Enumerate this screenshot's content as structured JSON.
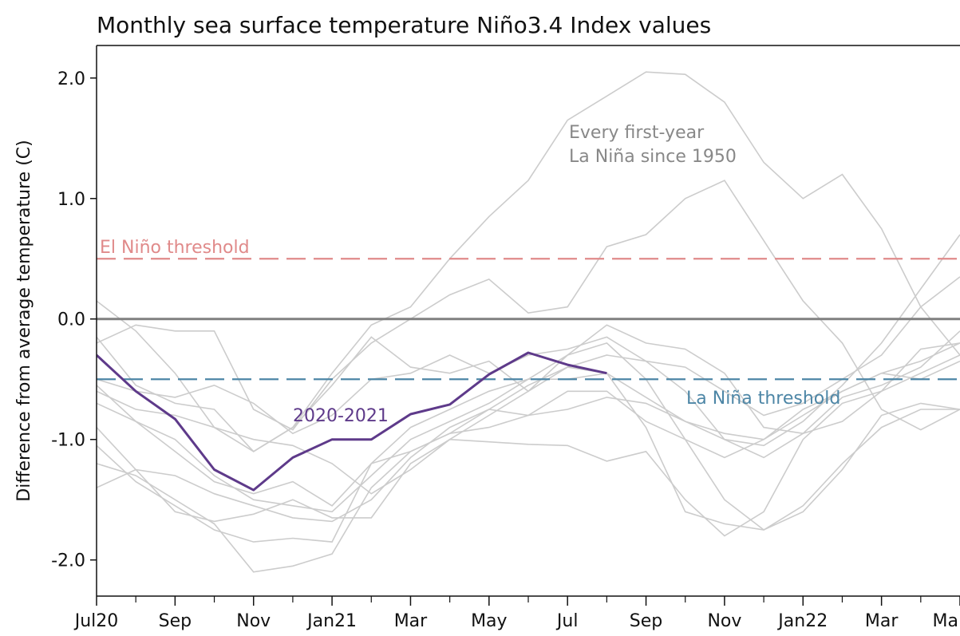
{
  "chart_data": {
    "type": "line",
    "title": "Monthly sea surface temperature Niño3.4 Index values",
    "xlabel": "",
    "ylabel": "Difference from average temperature (C)",
    "ylim": [
      -2.3,
      2.27
    ],
    "xlim": [
      0,
      22
    ],
    "yticks": [
      {
        "value": 2.0,
        "label": "2.0"
      },
      {
        "value": 1.0,
        "label": "1.0"
      },
      {
        "value": 0.0,
        "label": "0.0"
      },
      {
        "value": -1.0,
        "label": "-1.0"
      },
      {
        "value": -2.0,
        "label": "-2.0"
      }
    ],
    "xticks": [
      {
        "value": 0,
        "label": "Jul20"
      },
      {
        "value": 2,
        "label": "Sep"
      },
      {
        "value": 4,
        "label": "Nov"
      },
      {
        "value": 6,
        "label": "Jan21"
      },
      {
        "value": 8,
        "label": "Mar"
      },
      {
        "value": 10,
        "label": "May"
      },
      {
        "value": 12,
        "label": "Jul"
      },
      {
        "value": 14,
        "label": "Sep"
      },
      {
        "value": 16,
        "label": "Nov"
      },
      {
        "value": 18,
        "label": "Jan22"
      },
      {
        "value": 20,
        "label": "Mar"
      },
      {
        "value": 22,
        "label": "Ma"
      }
    ],
    "minor_xticks": [
      1,
      3,
      5,
      7,
      9,
      11,
      13,
      15,
      17,
      19,
      21
    ],
    "reference_lines": [
      {
        "name": "El Niño threshold",
        "y": 0.5,
        "color": "#e08a8a",
        "style": "dashed"
      },
      {
        "name": "zero",
        "y": 0.0,
        "color": "#808080",
        "style": "solid"
      },
      {
        "name": "La Niña threshold",
        "y": -0.5,
        "color": "#4d86a6",
        "style": "dashed"
      }
    ],
    "annotations": [
      {
        "text": "El Niño threshold",
        "color": "#e08a8a"
      },
      {
        "text": "La Niña threshold",
        "color": "#4d86a6"
      },
      {
        "text": "Every first-year",
        "color": "#888888"
      },
      {
        "text": "La Niña since 1950",
        "color": "#888888"
      },
      {
        "text": "2020-2021",
        "color": "#5e3a8a"
      }
    ],
    "highlight_series": {
      "name": "2020-2021",
      "color": "#5e3a8a",
      "x": [
        0,
        1,
        2,
        3,
        4,
        5,
        6,
        7,
        8,
        9,
        10,
        11,
        12,
        13
      ],
      "values": [
        -0.3,
        -0.6,
        -0.83,
        -1.25,
        -1.42,
        -1.15,
        -1.0,
        -1.0,
        -0.79,
        -0.71,
        -0.46,
        -0.28,
        -0.38,
        -0.45
      ]
    },
    "background_series": {
      "name": "Every first-year La Niña since 1950",
      "color": "#cccccc",
      "x": [
        0,
        1,
        2,
        3,
        4,
        5,
        6,
        7,
        8,
        9,
        10,
        11,
        12,
        13,
        14,
        15,
        16,
        17,
        18,
        19,
        20,
        21,
        22
      ],
      "series": [
        [
          0.15,
          -0.1,
          -0.45,
          -0.9,
          -1.1,
          -0.9,
          -0.45,
          -0.05,
          0.1,
          0.5,
          0.85,
          1.15,
          1.65,
          1.85,
          2.05,
          2.03,
          1.8,
          1.3,
          1.0,
          1.2,
          0.75,
          0.1,
          -0.3
        ],
        [
          -0.2,
          -0.05,
          -0.1,
          -0.1,
          -0.75,
          -0.92,
          -0.5,
          -0.2,
          0.0,
          0.2,
          0.33,
          0.05,
          0.1,
          0.6,
          0.7,
          1.0,
          1.15,
          0.65,
          0.15,
          -0.2,
          -0.75,
          -0.92,
          -0.75
        ],
        [
          -0.15,
          -0.55,
          -0.7,
          -0.75,
          -1.1,
          -0.9,
          -0.55,
          -0.15,
          -0.4,
          -0.45,
          -0.35,
          -0.6,
          -0.3,
          -0.05,
          -0.2,
          -0.25,
          -0.45,
          -0.9,
          -0.95,
          -0.85,
          -0.6,
          -0.25,
          -0.2
        ],
        [
          -0.5,
          -0.6,
          -0.65,
          -0.55,
          -0.7,
          -0.95,
          -0.8,
          -0.5,
          -0.45,
          -0.3,
          -0.45,
          -0.3,
          -0.25,
          -0.15,
          -0.35,
          -0.6,
          -1.0,
          -1.15,
          -0.95,
          -0.65,
          -0.55,
          -0.4,
          -0.1
        ],
        [
          -0.6,
          -0.75,
          -0.8,
          -0.9,
          -1.0,
          -1.05,
          -1.2,
          -1.45,
          -1.25,
          -1.0,
          -0.8,
          -0.6,
          -0.4,
          -0.3,
          -0.35,
          -0.4,
          -0.6,
          -0.8,
          -0.7,
          -0.5,
          -0.3,
          0.1,
          0.35
        ],
        [
          -0.7,
          -0.85,
          -1.0,
          -1.3,
          -1.5,
          -1.55,
          -1.6,
          -1.3,
          -1.0,
          -0.85,
          -0.7,
          -0.5,
          -0.5,
          -0.45,
          -0.65,
          -0.85,
          -1.0,
          -1.05,
          -0.85,
          -0.55,
          -0.2,
          0.25,
          0.7
        ],
        [
          -0.9,
          -1.25,
          -1.3,
          -1.45,
          -1.55,
          -1.65,
          -1.68,
          -1.5,
          -1.15,
          -0.9,
          -0.75,
          -0.8,
          -0.6,
          -0.6,
          -0.85,
          -1.0,
          -1.15,
          -1.0,
          -0.8,
          -0.6,
          -0.45,
          -0.35,
          -0.2
        ],
        [
          -1.05,
          -1.35,
          -1.55,
          -1.75,
          -1.85,
          -1.82,
          -1.85,
          -1.2,
          -0.9,
          -0.75,
          -0.6,
          -0.5,
          -0.3,
          -0.2,
          -0.5,
          -1.0,
          -1.5,
          -1.75,
          -1.6,
          -1.25,
          -0.8,
          -0.7,
          -0.75
        ],
        [
          -1.2,
          -1.3,
          -1.5,
          -1.7,
          -2.1,
          -2.05,
          -1.95,
          -1.4,
          -1.1,
          -0.95,
          -0.75,
          -0.55,
          -0.4,
          -0.45,
          -0.9,
          -1.6,
          -1.7,
          -1.75,
          -1.55,
          -1.2,
          -0.9,
          -0.75,
          -0.75
        ],
        [
          -1.4,
          -1.25,
          -1.6,
          -1.68,
          -1.62,
          -1.5,
          -1.65,
          -1.65,
          -1.2,
          -1.0,
          -1.02,
          -1.04,
          -1.05,
          -1.18,
          -1.1,
          -1.5,
          -1.8,
          -1.6,
          -1.0,
          -0.7,
          -0.6,
          -0.45,
          -0.3
        ],
        [
          -0.55,
          -0.85,
          -1.1,
          -1.35,
          -1.45,
          -1.35,
          -1.55,
          -1.2,
          -1.1,
          -0.95,
          -0.9,
          -0.8,
          -0.75,
          -0.65,
          -0.7,
          -0.85,
          -0.95,
          -1.0,
          -0.75,
          -0.6,
          -0.45,
          -0.5,
          -0.35
        ]
      ]
    }
  }
}
